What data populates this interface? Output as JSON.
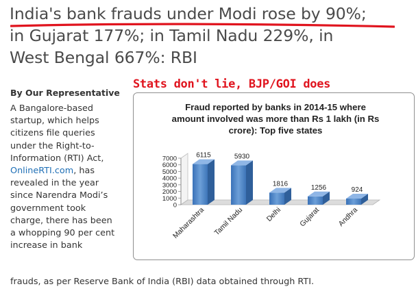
{
  "headline": {
    "lines": [
      "India's bank frauds under Modi rose by 90%;",
      "in Gujarat 177%; in Tamil Nadu 229%, in",
      "West Bengal 667%: RBI"
    ]
  },
  "stamp": "Stats don't lie, BJP/GOI does",
  "byline": "By Our Representative",
  "article": {
    "lines": [
      "A Bangalore-based",
      "startup, which helps",
      "citizens file queries",
      "under the Right-to-",
      "Information (RTI) Act,",
      "",
      "revealed in the year",
      "since Narendra Modi’s",
      "government took",
      "charge, there has been",
      "a whopping 90 per cent",
      "increase in bank"
    ],
    "link_text": "OnlineRTI.com",
    "link_suffix": ", has",
    "last_line": "frauds, as per Reserve Bank of India (RBI) data obtained through RTI."
  },
  "colors": {
    "accent_red": "#e0141e",
    "headline_text": "#4a4a4a",
    "link": "#1f6fb6",
    "bar": "#4f86c6"
  },
  "chart_data": {
    "type": "bar",
    "title_lines": [
      "Fraud reported by banks in 2014-15 where",
      "amount involved was more than Rs 1 lakh (in Rs",
      "crore): Top five states"
    ],
    "categories": [
      "Maharashtra",
      "Tamil Nadu",
      "Delhi",
      "Gujarat",
      "Andhra"
    ],
    "values": [
      6115,
      5930,
      1816,
      1256,
      924
    ],
    "data_labels": [
      "6115",
      "5930",
      "1816",
      "1256",
      "924"
    ],
    "yticks": [
      "0",
      "1000",
      "2000",
      "3000",
      "4000",
      "5000",
      "6000",
      "7000"
    ],
    "ylim": [
      0,
      7000
    ],
    "xlabel": "",
    "ylabel": "",
    "grid": false,
    "legend": "none",
    "style": "3d-bar"
  }
}
